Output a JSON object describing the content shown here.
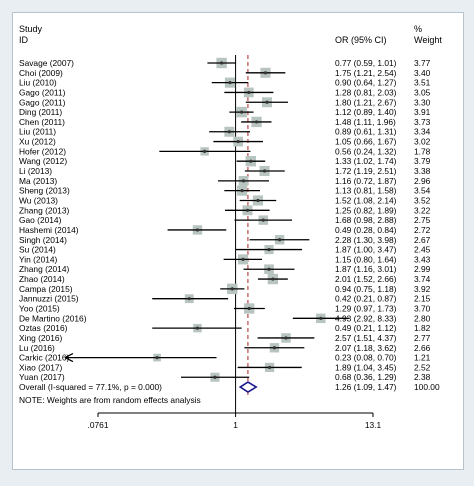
{
  "chart_data": {
    "type": "forest",
    "header": {
      "col1_line1": "Study",
      "col1_line2": "ID",
      "col2": "OR (95% CI)",
      "col3_line1": "%",
      "col3_line2": "Weight"
    },
    "x_scale": "log",
    "x_ticks": [
      0.0761,
      1,
      13.1
    ],
    "x_tick_labels": [
      ".0761",
      "1",
      "13.1"
    ],
    "null_value": 1,
    "pooled_line_value": 1.26,
    "colors": {
      "box": "#b8c4c0",
      "line": "#000000",
      "dashed": "#b22222",
      "diamond": "#1a1a8c"
    },
    "studies": [
      {
        "label": "Savage (2007)",
        "or": 0.77,
        "lo": 0.59,
        "hi": 1.01,
        "ci_text": "0.77 (0.59, 1.01)",
        "weight": "3.77"
      },
      {
        "label": "Choi  (2009)",
        "or": 1.75,
        "lo": 1.21,
        "hi": 2.54,
        "ci_text": "1.75 (1.21, 2.54)",
        "weight": "3.40"
      },
      {
        "label": "Liu (2010)",
        "or": 0.9,
        "lo": 0.64,
        "hi": 1.27,
        "ci_text": "0.90 (0.64, 1.27)",
        "weight": "3.51"
      },
      {
        "label": "Gago (2011)",
        "or": 1.28,
        "lo": 0.81,
        "hi": 2.03,
        "ci_text": "1.28 (0.81, 2.03)",
        "weight": "3.05"
      },
      {
        "label": "Gago (2011)",
        "or": 1.8,
        "lo": 1.21,
        "hi": 2.67,
        "ci_text": "1.80 (1.21, 2.67)",
        "weight": "3.30"
      },
      {
        "label": "Ding (2011)",
        "or": 1.12,
        "or_": 1.12,
        "lo": 0.89,
        "hi": 1.4,
        "ci_text": "1.12 (0.89, 1.40)",
        "weight": "3.91"
      },
      {
        "label": "Chen (2011)",
        "or": 1.48,
        "lo": 1.11,
        "hi": 1.96,
        "ci_text": "1.48 (1.11, 1.96)",
        "weight": "3.73"
      },
      {
        "label": "Liu (2011)",
        "or": 0.89,
        "lo": 0.61,
        "hi": 1.31,
        "ci_text": "0.89 (0.61, 1.31)",
        "weight": "3.34"
      },
      {
        "label": "Xu (2012)",
        "or": 1.05,
        "lo": 0.66,
        "hi": 1.67,
        "ci_text": "1.05 (0.66, 1.67)",
        "weight": "3.02"
      },
      {
        "label": "Hofer (2012)",
        "or": 0.56,
        "lo": 0.24,
        "hi": 1.32,
        "ci_text": "0.56 (0.24, 1.32)",
        "weight": "1.78"
      },
      {
        "label": "Wang (2012)",
        "or": 1.33,
        "lo": 1.02,
        "hi": 1.74,
        "ci_text": "1.33 (1.02, 1.74)",
        "weight": "3.79"
      },
      {
        "label": "Li (2013)",
        "or": 1.72,
        "lo": 1.19,
        "hi": 2.51,
        "ci_text": "1.72 (1.19, 2.51)",
        "weight": "3.38"
      },
      {
        "label": "Ma (2013)",
        "or": 1.16,
        "lo": 0.72,
        "hi": 1.87,
        "ci_text": "1.16 (0.72, 1.87)",
        "weight": "2.96"
      },
      {
        "label": "Sheng (2013)",
        "or": 1.13,
        "lo": 0.81,
        "hi": 1.58,
        "ci_text": "1.13 (0.81, 1.58)",
        "weight": "3.54"
      },
      {
        "label": "Wu (2013)",
        "or": 1.52,
        "lo": 1.08,
        "hi": 2.14,
        "ci_text": "1.52 (1.08, 2.14)",
        "weight": "3.52"
      },
      {
        "label": "Zhang (2013)",
        "or": 1.25,
        "lo": 0.82,
        "hi": 1.89,
        "ci_text": "1.25 (0.82, 1.89)",
        "weight": "3.22"
      },
      {
        "label": "Gao (2014)",
        "or": 1.68,
        "lo": 0.98,
        "hi": 2.88,
        "ci_text": "1.68 (0.98, 2.88)",
        "weight": "2.75"
      },
      {
        "label": "Hashemi (2014)",
        "or": 0.49,
        "lo": 0.28,
        "hi": 0.84,
        "ci_text": "0.49 (0.28, 0.84)",
        "weight": "2.72"
      },
      {
        "label": "Singh (2014)",
        "or": 2.28,
        "lo": 1.3,
        "hi": 3.98,
        "ci_text": "2.28 (1.30, 3.98)",
        "weight": "2.67"
      },
      {
        "label": "Su (2014)",
        "or": 1.87,
        "lo": 1.0,
        "hi": 3.47,
        "ci_text": "1.87 (1.00, 3.47)",
        "weight": "2.45"
      },
      {
        "label": "Yin (2014)",
        "or": 1.15,
        "lo": 0.8,
        "hi": 1.64,
        "ci_text": "1.15 (0.80, 1.64)",
        "weight": "3.43"
      },
      {
        "label": "Zhang (2014)",
        "or": 1.87,
        "lo": 1.16,
        "hi": 3.01,
        "ci_text": "1.87 (1.16, 3.01)",
        "weight": "2.99"
      },
      {
        "label": "Zhao (2014)",
        "or": 2.01,
        "lo": 1.52,
        "hi": 2.66,
        "ci_text": "2.01 (1.52, 2.66)",
        "weight": "3.74"
      },
      {
        "label": "Campa (2015)",
        "or": 0.94,
        "lo": 0.75,
        "hi": 1.18,
        "ci_text": "0.94 (0.75, 1.18)",
        "weight": "3.92"
      },
      {
        "label": "Jannuzzi (2015)",
        "or": 0.42,
        "or2": 0,
        "lo": 0.21,
        "hi": 0.87,
        "ci_text": "0.42 (0.21, 0.87)",
        "weight": "2.15"
      },
      {
        "label": "Yoo  (2015)",
        "or": 1.29,
        "lo": 0.97,
        "hi": 1.73,
        "ci_text": "1.29 (0.97, 1.73)",
        "weight": "3.70"
      },
      {
        "label": "De Martino (2016)",
        "or": 4.93,
        "lo": 2.92,
        "hi": 8.33,
        "ci_text": "4.93 (2.92, 8.33)",
        "weight": "2.80"
      },
      {
        "label": "Oztas (2016)",
        "or": 0.49,
        "lo": 0.21,
        "hi": 1.12,
        "ci_text": "0.49 (0.21, 1.12)",
        "weight": "1.82"
      },
      {
        "label": "Xing (2016)",
        "or": 2.57,
        "lo": 1.51,
        "hi": 4.37,
        "ci_text": "2.57 (1.51, 4.37)",
        "weight": "2.77"
      },
      {
        "label": "Lu (2016)",
        "or": 2.07,
        "lo": 1.18,
        "hi": 3.62,
        "ci_text": "2.07 (1.18, 3.62)",
        "weight": "2.66"
      },
      {
        "label": "Carkic (2016)",
        "or": 0.23,
        "lo": 0.08,
        "hi": 0.7,
        "ci_text": "0.23 (0.08, 0.70)",
        "weight": "1.21",
        "arrow_left": true
      },
      {
        "label": "Xiao (2017)",
        "or": 1.89,
        "lo": 1.04,
        "hi": 3.45,
        "ci_text": "1.89 (1.04, 3.45)",
        "weight": "2.52"
      },
      {
        "label": "Yuan (2017)",
        "or": 0.68,
        "lo": 0.36,
        "hi": 1.29,
        "ci_text": "0.68 (0.36, 1.29)",
        "weight": "2.38"
      }
    ],
    "overall": {
      "label": "Overall  (I-squared = 77.1%, p = 0.000)",
      "or": 1.26,
      "lo": 1.09,
      "hi": 1.47,
      "ci_text": "1.26 (1.09, 1.47)",
      "weight": "100.00"
    },
    "note": "NOTE: Weights are from random effects analysis"
  }
}
